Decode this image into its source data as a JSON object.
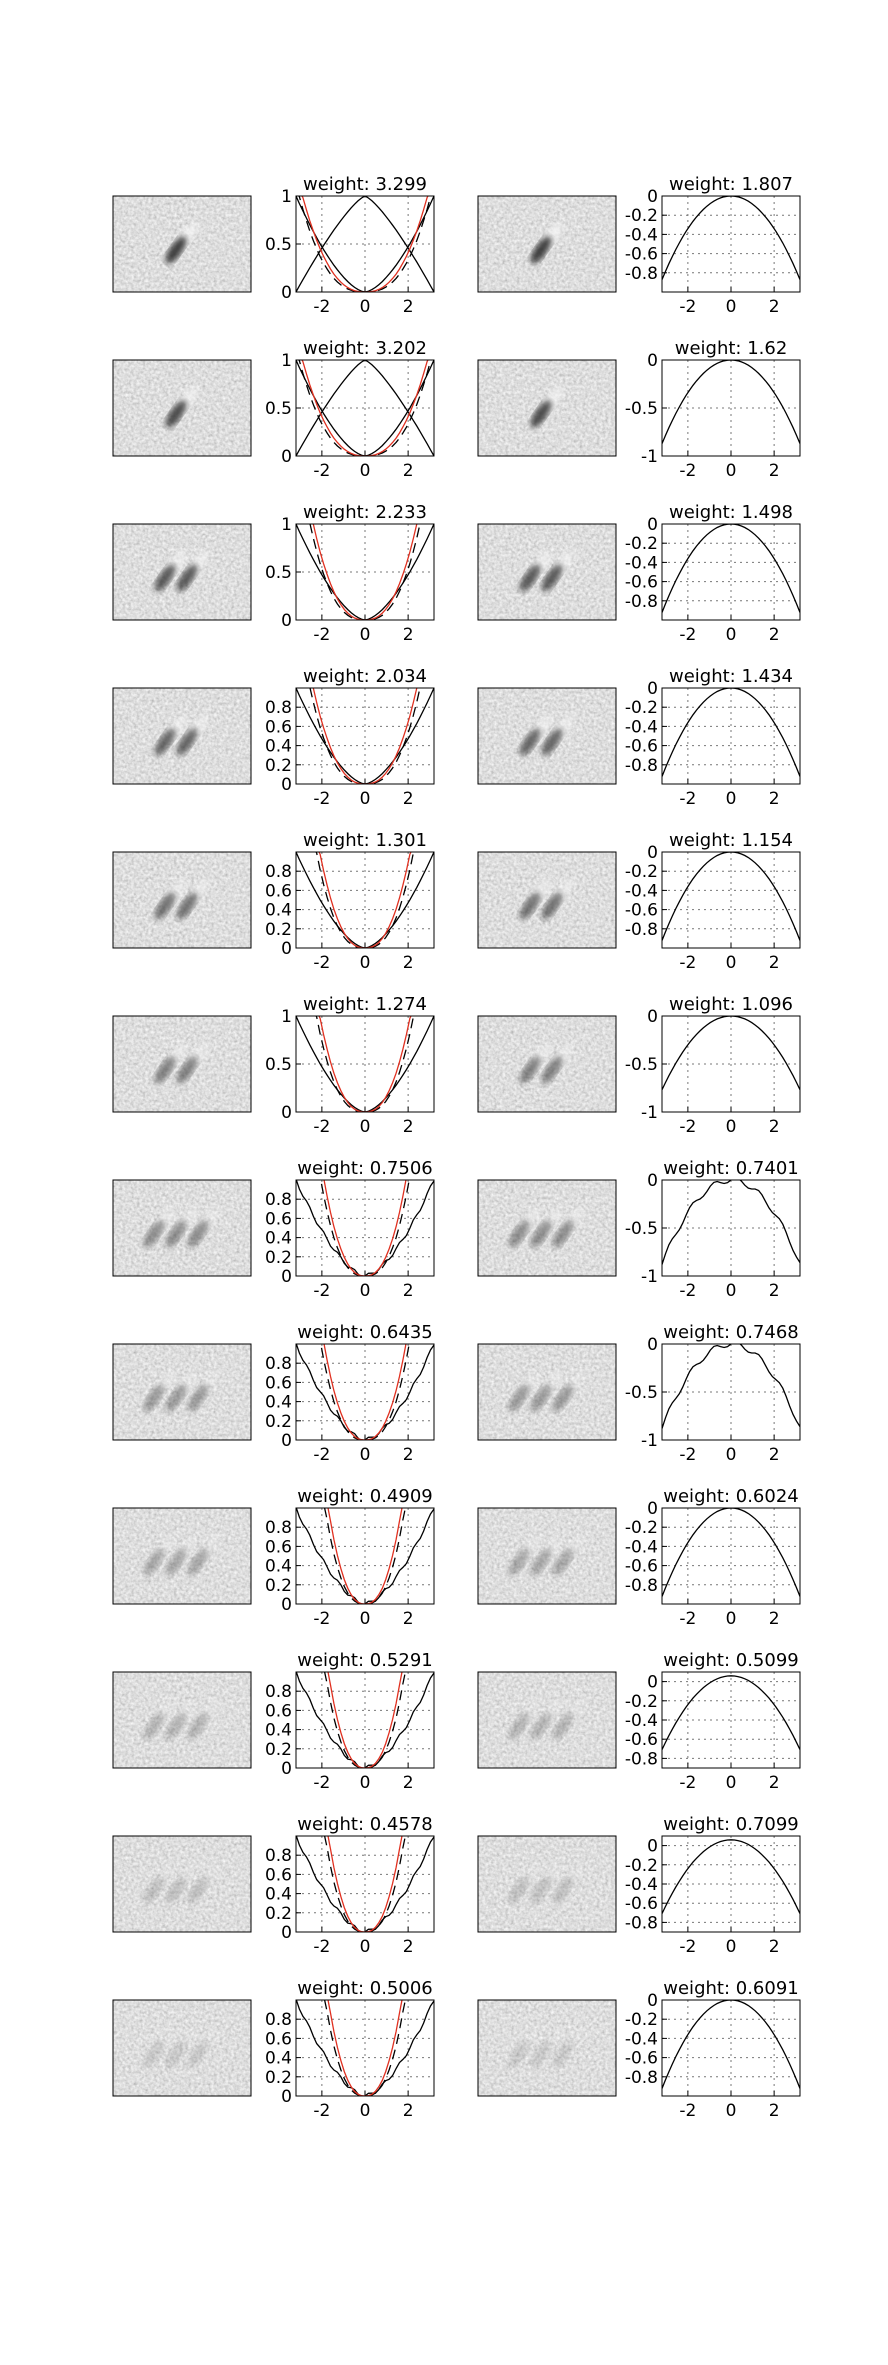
{
  "chart_data": {
    "type": "line",
    "layout": "grid of 12 rows × 2 columns of (filter image + line plot)",
    "x_ticks": [
      -2,
      0,
      2
    ],
    "xlim": [
      -3.2,
      3.2
    ],
    "grid": "on",
    "colors": {
      "red": "#e03020",
      "black": "#000000",
      "image_bg": "#808080"
    },
    "rows": [
      {
        "left": {
          "title": "weight: 3.299",
          "type": "positive",
          "y_ticks": [
            "0",
            "0.5",
            "1"
          ],
          "ylim": [
            0,
            1
          ],
          "variant": "a"
        },
        "right": {
          "title": "weight: 1.807",
          "type": "negative",
          "y_ticks": [
            "0",
            "-0.2",
            "-0.4",
            "-0.6",
            "-0.8"
          ],
          "ylim": [
            -1,
            0
          ],
          "variant": "a"
        }
      },
      {
        "left": {
          "title": "weight: 3.202",
          "type": "positive",
          "y_ticks": [
            "0",
            "0.5",
            "1"
          ],
          "ylim": [
            0,
            1
          ],
          "variant": "a"
        },
        "right": {
          "title": "weight: 1.62",
          "type": "negative",
          "y_ticks": [
            "0",
            "-0.5",
            "-1"
          ],
          "ylim": [
            -1,
            0
          ],
          "variant": "a"
        }
      },
      {
        "left": {
          "title": "weight: 2.233",
          "type": "positive",
          "y_ticks": [
            "0",
            "0.5",
            "1"
          ],
          "ylim": [
            0,
            1
          ],
          "variant": "b"
        },
        "right": {
          "title": "weight: 1.498",
          "type": "negative",
          "y_ticks": [
            "0",
            "-0.2",
            "-0.4",
            "-0.6",
            "-0.8"
          ],
          "ylim": [
            -1,
            0
          ],
          "variant": "b"
        }
      },
      {
        "left": {
          "title": "weight: 2.034",
          "type": "positive",
          "y_ticks": [
            "0",
            "0.2",
            "0.4",
            "0.6",
            "0.8"
          ],
          "ylim": [
            0,
            1
          ],
          "variant": "b"
        },
        "right": {
          "title": "weight: 1.434",
          "type": "negative",
          "y_ticks": [
            "0",
            "-0.2",
            "-0.4",
            "-0.6",
            "-0.8"
          ],
          "ylim": [
            -1,
            0
          ],
          "variant": "b"
        }
      },
      {
        "left": {
          "title": "weight: 1.301",
          "type": "positive",
          "y_ticks": [
            "0",
            "0.2",
            "0.4",
            "0.6",
            "0.8"
          ],
          "ylim": [
            0,
            1
          ],
          "variant": "c"
        },
        "right": {
          "title": "weight: 1.154",
          "type": "negative",
          "y_ticks": [
            "0",
            "-0.2",
            "-0.4",
            "-0.6",
            "-0.8"
          ],
          "ylim": [
            -1,
            0
          ],
          "variant": "b"
        }
      },
      {
        "left": {
          "title": "weight: 1.274",
          "type": "positive",
          "y_ticks": [
            "0",
            "0.5",
            "1"
          ],
          "ylim": [
            0,
            1
          ],
          "variant": "c"
        },
        "right": {
          "title": "weight: 1.096",
          "type": "negative",
          "y_ticks": [
            "0",
            "-0.5",
            "-1"
          ],
          "ylim": [
            -1,
            0
          ],
          "variant": "c"
        }
      },
      {
        "left": {
          "title": "weight: 0.7506",
          "type": "positive",
          "y_ticks": [
            "0",
            "0.2",
            "0.4",
            "0.6",
            "0.8"
          ],
          "ylim": [
            0,
            1
          ],
          "variant": "d"
        },
        "right": {
          "title": "weight: 0.7401",
          "type": "negative",
          "y_ticks": [
            "0",
            "-0.5",
            "-1"
          ],
          "ylim": [
            -1,
            0
          ],
          "variant": "d"
        }
      },
      {
        "left": {
          "title": "weight: 0.6435",
          "type": "positive",
          "y_ticks": [
            "0",
            "0.2",
            "0.4",
            "0.6",
            "0.8"
          ],
          "ylim": [
            0,
            1
          ],
          "variant": "d"
        },
        "right": {
          "title": "weight: 0.7468",
          "type": "negative",
          "y_ticks": [
            "0",
            "-0.5",
            "-1"
          ],
          "ylim": [
            -1,
            0
          ],
          "variant": "d"
        }
      },
      {
        "left": {
          "title": "weight: 0.4909",
          "type": "positive",
          "y_ticks": [
            "0",
            "0.2",
            "0.4",
            "0.6",
            "0.8"
          ],
          "ylim": [
            0,
            1
          ],
          "variant": "e"
        },
        "right": {
          "title": "weight: 0.6024",
          "type": "negative",
          "y_ticks": [
            "0",
            "-0.2",
            "-0.4",
            "-0.6",
            "-0.8"
          ],
          "ylim": [
            -1,
            0
          ],
          "variant": "b"
        }
      },
      {
        "left": {
          "title": "weight: 0.5291",
          "type": "positive",
          "y_ticks": [
            "0",
            "0.2",
            "0.4",
            "0.6",
            "0.8"
          ],
          "ylim": [
            0,
            1
          ],
          "variant": "e"
        },
        "right": {
          "title": "weight: 0.5099",
          "type": "negative",
          "y_ticks": [
            "0",
            "-0.2",
            "-0.4",
            "-0.6",
            "-0.8"
          ],
          "ylim": [
            -0.9,
            0.1
          ],
          "variant": "e"
        }
      },
      {
        "left": {
          "title": "weight: 0.4578",
          "type": "positive",
          "y_ticks": [
            "0",
            "0.2",
            "0.4",
            "0.6",
            "0.8"
          ],
          "ylim": [
            0,
            1
          ],
          "variant": "e"
        },
        "right": {
          "title": "weight: 0.7099",
          "type": "negative",
          "y_ticks": [
            "0",
            "-0.2",
            "-0.4",
            "-0.6",
            "-0.8"
          ],
          "ylim": [
            -0.9,
            0.1
          ],
          "variant": "e"
        }
      },
      {
        "left": {
          "title": "weight: 0.5006",
          "type": "positive",
          "y_ticks": [
            "0",
            "0.2",
            "0.4",
            "0.6",
            "0.8"
          ],
          "ylim": [
            0,
            1
          ],
          "variant": "e"
        },
        "right": {
          "title": "weight: 0.6091",
          "type": "negative",
          "y_ticks": [
            "0",
            "-0.2",
            "-0.4",
            "-0.6",
            "-0.8"
          ],
          "ylim": [
            -1,
            0
          ],
          "variant": "b"
        }
      }
    ]
  }
}
